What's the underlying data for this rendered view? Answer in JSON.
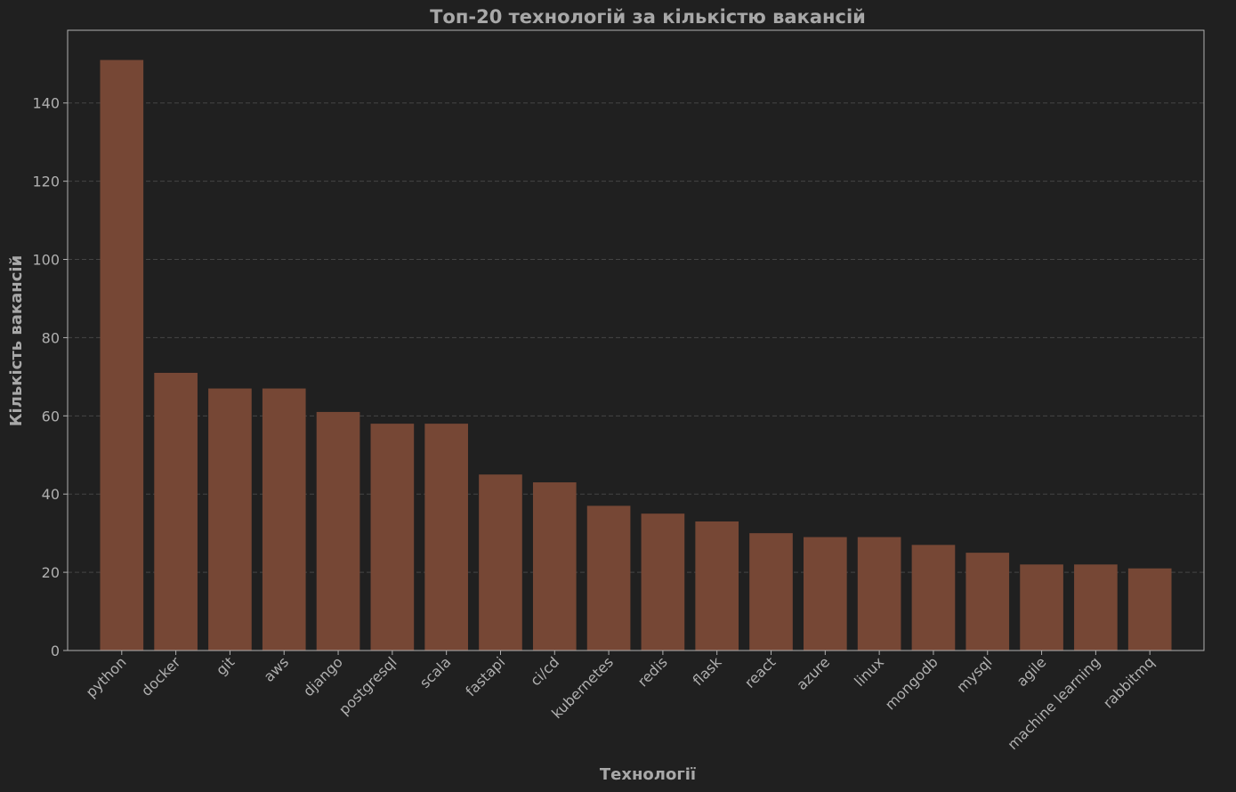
{
  "chart_data": {
    "type": "bar",
    "title": "Топ-20 технологій за кількістю вакансій",
    "xlabel": "Технології",
    "ylabel": "Кількість вакансій",
    "categories": [
      "python",
      "docker",
      "git",
      "aws",
      "django",
      "postgresql",
      "scala",
      "fastapi",
      "ci/cd",
      "kubernetes",
      "redis",
      "flask",
      "react",
      "azure",
      "linux",
      "mongodb",
      "mysql",
      "agile",
      "machine learning",
      "rabbitmq"
    ],
    "values": [
      151,
      71,
      67,
      67,
      61,
      58,
      58,
      45,
      43,
      37,
      35,
      33,
      30,
      29,
      29,
      27,
      25,
      22,
      22,
      21
    ],
    "ylim": [
      0,
      158.6
    ],
    "yticks": [
      0,
      20,
      40,
      60,
      80,
      100,
      120,
      140
    ],
    "grid": "y-dashed",
    "legend": "none",
    "colors": {
      "background": "#202020",
      "bar": "#764735",
      "axes": "#b0b0b0",
      "grid": "#444444",
      "text": "#a8a8a8"
    }
  }
}
